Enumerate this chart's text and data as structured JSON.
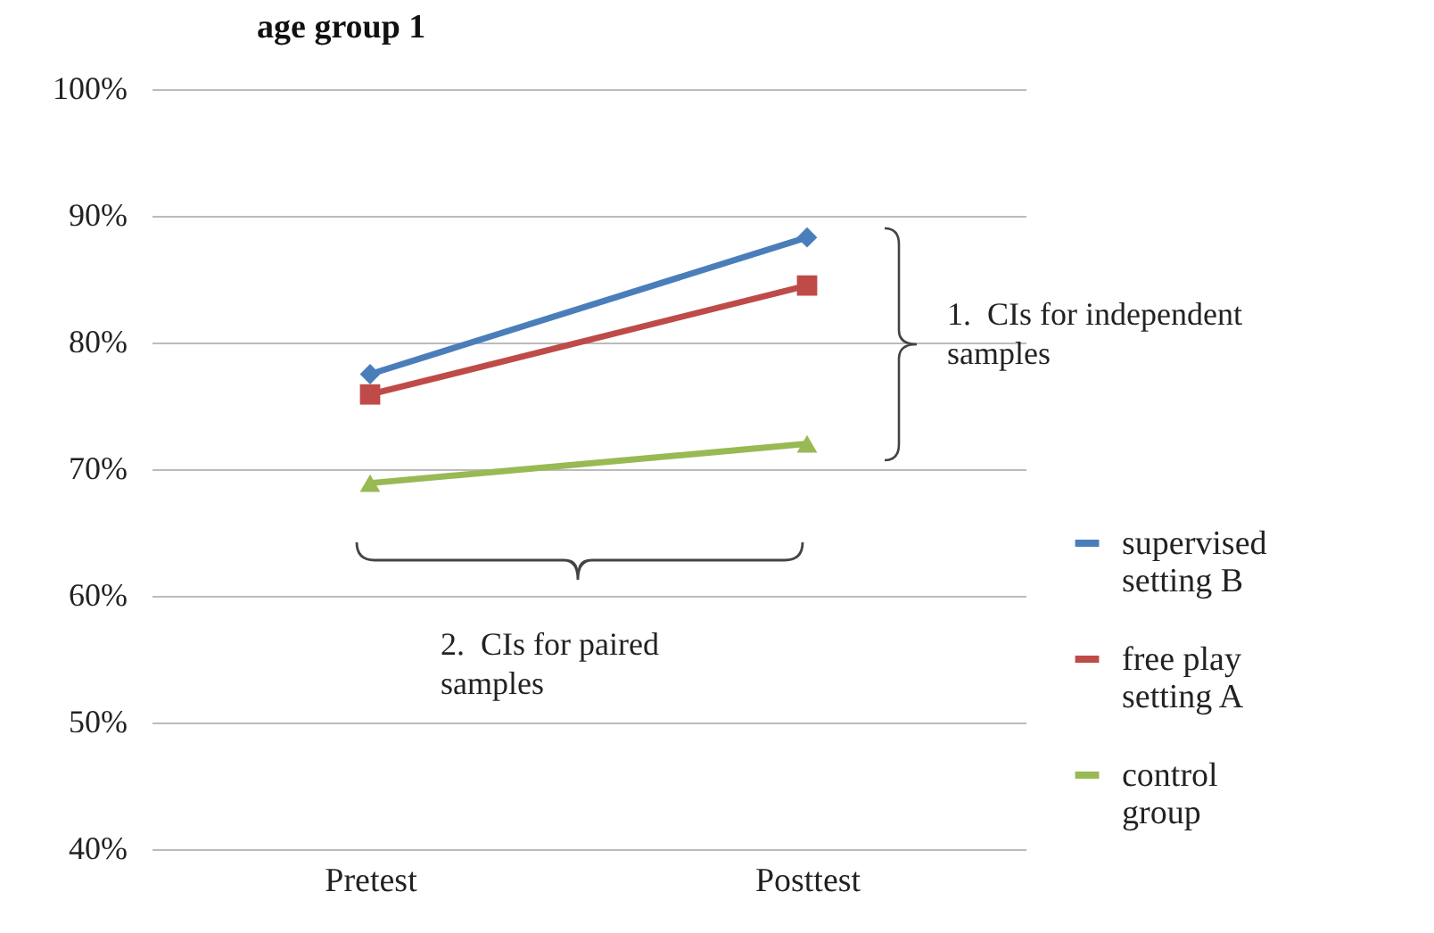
{
  "chart_data": {
    "type": "line",
    "title": "age group  1",
    "categories": [
      "Pretest",
      "Posttest"
    ],
    "series": [
      {
        "name": "supervised setting B",
        "color": "#4a7ebb",
        "marker": "diamond",
        "values": [
          77.5,
          88.3
        ]
      },
      {
        "name": "free play setting A",
        "color": "#be4b48",
        "marker": "square",
        "values": [
          75.9,
          84.5
        ]
      },
      {
        "name": "control group",
        "color": "#98b954",
        "marker": "triangle",
        "values": [
          68.9,
          72.0
        ]
      }
    ],
    "ylim": [
      40,
      100
    ],
    "yticks": [
      {
        "value": 40,
        "label": "40%"
      },
      {
        "value": 50,
        "label": "50%"
      },
      {
        "value": 60,
        "label": "60%"
      },
      {
        "value": 70,
        "label": "70%"
      },
      {
        "value": 80,
        "label": "80%"
      },
      {
        "value": 90,
        "label": "90%"
      },
      {
        "value": 100,
        "label": "100%"
      }
    ],
    "grid": "y",
    "legend": "right",
    "annotations": [
      "1.  CIs for independent samples",
      "2.  CIs for paired samples"
    ]
  }
}
